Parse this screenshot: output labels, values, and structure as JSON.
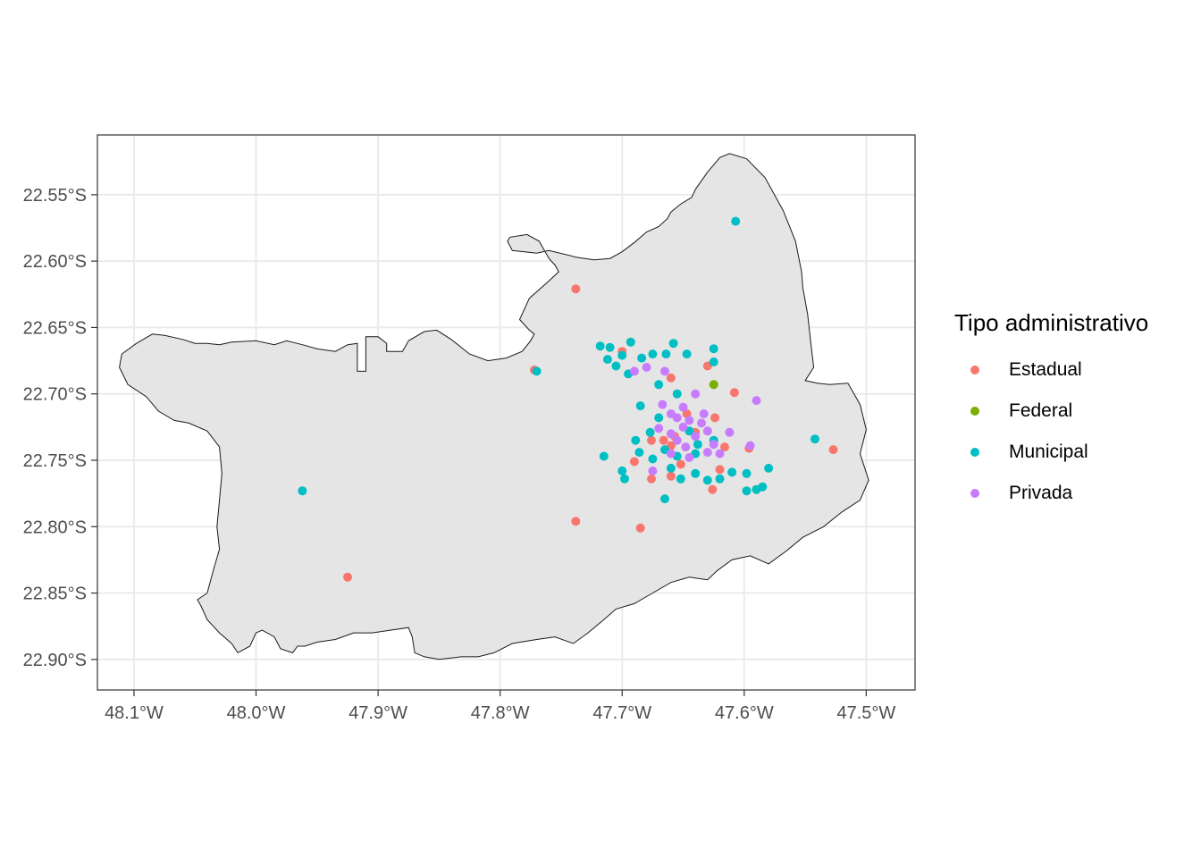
{
  "chart_data": {
    "type": "scatter",
    "title": "",
    "xlabel": "",
    "ylabel": "",
    "xlim": [
      -48.13,
      -47.46
    ],
    "ylim": [
      -22.923,
      -22.505
    ],
    "x_ticks": [
      {
        "value": -48.1,
        "label": "48.1°W"
      },
      {
        "value": -48.0,
        "label": "48.0°W"
      },
      {
        "value": -47.9,
        "label": "47.9°W"
      },
      {
        "value": -47.8,
        "label": "47.8°W"
      },
      {
        "value": -47.7,
        "label": "47.7°W"
      },
      {
        "value": -47.6,
        "label": "47.6°W"
      },
      {
        "value": -47.5,
        "label": "47.5°W"
      }
    ],
    "y_ticks": [
      {
        "value": -22.55,
        "label": "22.55°S"
      },
      {
        "value": -22.6,
        "label": "22.60°S"
      },
      {
        "value": -22.65,
        "label": "22.65°S"
      },
      {
        "value": -22.7,
        "label": "22.70°S"
      },
      {
        "value": -22.75,
        "label": "22.75°S"
      },
      {
        "value": -22.8,
        "label": "22.80°S"
      },
      {
        "value": -22.85,
        "label": "22.85°S"
      },
      {
        "value": -22.9,
        "label": "22.90°S"
      }
    ],
    "grid": true,
    "legend_position": "right",
    "legend": {
      "title": "Tipo administrativo",
      "entries": [
        {
          "name": "Estadual",
          "color": "#F8766D"
        },
        {
          "name": "Federal",
          "color": "#7CAE00"
        },
        {
          "name": "Municipal",
          "color": "#00BFC4"
        },
        {
          "name": "Privada",
          "color": "#C77CFF"
        }
      ]
    },
    "boundary": [
      [
        -48.11,
        -22.67
      ],
      [
        -48.098,
        -22.662
      ],
      [
        -48.085,
        -22.655
      ],
      [
        -48.075,
        -22.656
      ],
      [
        -48.06,
        -22.659
      ],
      [
        -48.05,
        -22.662
      ],
      [
        -48.04,
        -22.662
      ],
      [
        -48.03,
        -22.663
      ],
      [
        -48.02,
        -22.661
      ],
      [
        -48.0,
        -22.66
      ],
      [
        -47.985,
        -22.663
      ],
      [
        -47.975,
        -22.66
      ],
      [
        -47.962,
        -22.663
      ],
      [
        -47.95,
        -22.666
      ],
      [
        -47.935,
        -22.668
      ],
      [
        -47.925,
        -22.663
      ],
      [
        -47.917,
        -22.662
      ],
      [
        -47.917,
        -22.683
      ],
      [
        -47.91,
        -22.683
      ],
      [
        -47.91,
        -22.657
      ],
      [
        -47.9,
        -22.657
      ],
      [
        -47.893,
        -22.662
      ],
      [
        -47.893,
        -22.668
      ],
      [
        -47.88,
        -22.668
      ],
      [
        -47.875,
        -22.66
      ],
      [
        -47.862,
        -22.653
      ],
      [
        -47.852,
        -22.652
      ],
      [
        -47.84,
        -22.659
      ],
      [
        -47.825,
        -22.67
      ],
      [
        -47.81,
        -22.675
      ],
      [
        -47.795,
        -22.673
      ],
      [
        -47.782,
        -22.668
      ],
      [
        -47.775,
        -22.66
      ],
      [
        -47.772,
        -22.655
      ],
      [
        -47.776,
        -22.652
      ],
      [
        -47.784,
        -22.644
      ],
      [
        -47.776,
        -22.628
      ],
      [
        -47.76,
        -22.615
      ],
      [
        -47.752,
        -22.608
      ],
      [
        -47.755,
        -22.603
      ],
      [
        -47.76,
        -22.598
      ],
      [
        -47.768,
        -22.585
      ],
      [
        -47.778,
        -22.58
      ],
      [
        -47.792,
        -22.582
      ],
      [
        -47.794,
        -22.585
      ],
      [
        -47.79,
        -22.592
      ],
      [
        -47.77,
        -22.594
      ],
      [
        -47.76,
        -22.592
      ],
      [
        -47.742,
        -22.596
      ],
      [
        -47.738,
        -22.597
      ],
      [
        -47.723,
        -22.599
      ],
      [
        -47.71,
        -22.598
      ],
      [
        -47.7,
        -22.593
      ],
      [
        -47.69,
        -22.586
      ],
      [
        -47.68,
        -22.578
      ],
      [
        -47.67,
        -22.574
      ],
      [
        -47.663,
        -22.568
      ],
      [
        -47.66,
        -22.563
      ],
      [
        -47.652,
        -22.557
      ],
      [
        -47.643,
        -22.552
      ],
      [
        -47.64,
        -22.546
      ],
      [
        -47.63,
        -22.533
      ],
      [
        -47.62,
        -22.522
      ],
      [
        -47.612,
        -22.519
      ],
      [
        -47.598,
        -22.523
      ],
      [
        -47.583,
        -22.537
      ],
      [
        -47.568,
        -22.562
      ],
      [
        -47.558,
        -22.585
      ],
      [
        -47.553,
        -22.608
      ],
      [
        -47.552,
        -22.62
      ],
      [
        -47.548,
        -22.64
      ],
      [
        -47.545,
        -22.665
      ],
      [
        -47.543,
        -22.68
      ],
      [
        -47.55,
        -22.69
      ],
      [
        -47.54,
        -22.692
      ],
      [
        -47.53,
        -22.693
      ],
      [
        -47.515,
        -22.692
      ],
      [
        -47.505,
        -22.708
      ],
      [
        -47.5,
        -22.727
      ],
      [
        -47.505,
        -22.745
      ],
      [
        -47.498,
        -22.765
      ],
      [
        -47.505,
        -22.78
      ],
      [
        -47.52,
        -22.789
      ],
      [
        -47.535,
        -22.8
      ],
      [
        -47.552,
        -22.808
      ],
      [
        -47.565,
        -22.818
      ],
      [
        -47.58,
        -22.828
      ],
      [
        -47.595,
        -22.822
      ],
      [
        -47.61,
        -22.825
      ],
      [
        -47.622,
        -22.833
      ],
      [
        -47.63,
        -22.84
      ],
      [
        -47.645,
        -22.838
      ],
      [
        -47.66,
        -22.842
      ],
      [
        -47.675,
        -22.85
      ],
      [
        -47.69,
        -22.858
      ],
      [
        -47.705,
        -22.862
      ],
      [
        -47.715,
        -22.87
      ],
      [
        -47.728,
        -22.88
      ],
      [
        -47.74,
        -22.888
      ],
      [
        -47.755,
        -22.883
      ],
      [
        -47.77,
        -22.885
      ],
      [
        -47.79,
        -22.888
      ],
      [
        -47.805,
        -22.895
      ],
      [
        -47.818,
        -22.898
      ],
      [
        -47.832,
        -22.898
      ],
      [
        -47.85,
        -22.9
      ],
      [
        -47.862,
        -22.898
      ],
      [
        -47.87,
        -22.895
      ],
      [
        -47.872,
        -22.883
      ],
      [
        -47.875,
        -22.876
      ],
      [
        -47.89,
        -22.878
      ],
      [
        -47.905,
        -22.88
      ],
      [
        -47.92,
        -22.88
      ],
      [
        -47.935,
        -22.885
      ],
      [
        -47.95,
        -22.887
      ],
      [
        -47.96,
        -22.89
      ],
      [
        -47.966,
        -22.89
      ],
      [
        -47.97,
        -22.895
      ],
      [
        -47.98,
        -22.892
      ],
      [
        -47.985,
        -22.883
      ],
      [
        -47.995,
        -22.878
      ],
      [
        -48.0,
        -22.88
      ],
      [
        -48.005,
        -22.89
      ],
      [
        -48.015,
        -22.895
      ],
      [
        -48.02,
        -22.888
      ],
      [
        -48.03,
        -22.88
      ],
      [
        -48.04,
        -22.87
      ],
      [
        -48.045,
        -22.86
      ],
      [
        -48.048,
        -22.855
      ],
      [
        -48.04,
        -22.85
      ],
      [
        -48.035,
        -22.833
      ],
      [
        -48.03,
        -22.817
      ],
      [
        -48.032,
        -22.8
      ],
      [
        -48.03,
        -22.78
      ],
      [
        -48.028,
        -22.76
      ],
      [
        -48.03,
        -22.74
      ],
      [
        -48.04,
        -22.728
      ],
      [
        -48.055,
        -22.722
      ],
      [
        -48.067,
        -22.72
      ],
      [
        -48.08,
        -22.713
      ],
      [
        -48.09,
        -22.702
      ],
      [
        -48.105,
        -22.693
      ],
      [
        -48.112,
        -22.68
      ]
    ],
    "series": [
      {
        "name": "Estadual",
        "color": "#F8766D",
        "points": [
          [
            -47.738,
            -22.621
          ],
          [
            -47.772,
            -22.682
          ],
          [
            -47.738,
            -22.796
          ],
          [
            -47.925,
            -22.838
          ],
          [
            -47.685,
            -22.801
          ],
          [
            -47.527,
            -22.742
          ],
          [
            -47.608,
            -22.699
          ],
          [
            -47.63,
            -22.679
          ],
          [
            -47.676,
            -22.764
          ],
          [
            -47.69,
            -22.751
          ],
          [
            -47.626,
            -22.772
          ],
          [
            -47.596,
            -22.741
          ],
          [
            -47.59,
            -22.772
          ],
          [
            -47.616,
            -22.74
          ],
          [
            -47.66,
            -22.739
          ],
          [
            -47.652,
            -22.753
          ],
          [
            -47.66,
            -22.688
          ],
          [
            -47.624,
            -22.718
          ],
          [
            -47.657,
            -22.732
          ],
          [
            -47.647,
            -22.715
          ],
          [
            -47.64,
            -22.729
          ],
          [
            -47.666,
            -22.735
          ],
          [
            -47.66,
            -22.762
          ],
          [
            -47.62,
            -22.757
          ],
          [
            -47.7,
            -22.668
          ],
          [
            -47.676,
            -22.735
          ]
        ]
      },
      {
        "name": "Federal",
        "color": "#7CAE00",
        "points": [
          [
            -47.625,
            -22.693
          ]
        ]
      },
      {
        "name": "Municipal",
        "color": "#00BFC4",
        "points": [
          [
            -47.962,
            -22.773
          ],
          [
            -47.77,
            -22.683
          ],
          [
            -47.607,
            -22.57
          ],
          [
            -47.542,
            -22.734
          ],
          [
            -47.715,
            -22.747
          ],
          [
            -47.698,
            -22.764
          ],
          [
            -47.71,
            -22.665
          ],
          [
            -47.7,
            -22.671
          ],
          [
            -47.693,
            -22.661
          ],
          [
            -47.718,
            -22.664
          ],
          [
            -47.705,
            -22.679
          ],
          [
            -47.695,
            -22.685
          ],
          [
            -47.684,
            -22.673
          ],
          [
            -47.675,
            -22.67
          ],
          [
            -47.658,
            -22.662
          ],
          [
            -47.664,
            -22.67
          ],
          [
            -47.647,
            -22.67
          ],
          [
            -47.625,
            -22.666
          ],
          [
            -47.655,
            -22.7
          ],
          [
            -47.67,
            -22.693
          ],
          [
            -47.685,
            -22.709
          ],
          [
            -47.67,
            -22.718
          ],
          [
            -47.665,
            -22.742
          ],
          [
            -47.675,
            -22.749
          ],
          [
            -47.66,
            -22.756
          ],
          [
            -47.652,
            -22.764
          ],
          [
            -47.64,
            -22.76
          ],
          [
            -47.63,
            -22.765
          ],
          [
            -47.62,
            -22.764
          ],
          [
            -47.61,
            -22.759
          ],
          [
            -47.598,
            -22.76
          ],
          [
            -47.59,
            -22.772
          ],
          [
            -47.585,
            -22.77
          ],
          [
            -47.58,
            -22.756
          ],
          [
            -47.598,
            -22.773
          ],
          [
            -47.625,
            -22.735
          ],
          [
            -47.64,
            -22.745
          ],
          [
            -47.655,
            -22.747
          ],
          [
            -47.665,
            -22.779
          ],
          [
            -47.625,
            -22.676
          ],
          [
            -47.686,
            -22.744
          ],
          [
            -47.689,
            -22.735
          ],
          [
            -47.7,
            -22.758
          ],
          [
            -47.712,
            -22.674
          ],
          [
            -47.677,
            -22.729
          ],
          [
            -47.645,
            -22.728
          ],
          [
            -47.638,
            -22.738
          ]
        ]
      },
      {
        "name": "Privada",
        "color": "#C77CFF",
        "points": [
          [
            -47.59,
            -22.705
          ],
          [
            -47.595,
            -22.739
          ],
          [
            -47.66,
            -22.73
          ],
          [
            -47.65,
            -22.725
          ],
          [
            -47.645,
            -22.72
          ],
          [
            -47.655,
            -22.735
          ],
          [
            -47.64,
            -22.732
          ],
          [
            -47.635,
            -22.722
          ],
          [
            -47.63,
            -22.728
          ],
          [
            -47.648,
            -22.74
          ],
          [
            -47.66,
            -22.715
          ],
          [
            -47.67,
            -22.726
          ],
          [
            -47.625,
            -22.738
          ],
          [
            -47.612,
            -22.729
          ],
          [
            -47.65,
            -22.71
          ],
          [
            -47.64,
            -22.7
          ],
          [
            -47.62,
            -22.745
          ],
          [
            -47.66,
            -22.745
          ],
          [
            -47.675,
            -22.758
          ],
          [
            -47.69,
            -22.683
          ],
          [
            -47.68,
            -22.68
          ],
          [
            -47.665,
            -22.683
          ],
          [
            -47.63,
            -22.744
          ],
          [
            -47.645,
            -22.748
          ],
          [
            -47.655,
            -22.718
          ],
          [
            -47.667,
            -22.708
          ],
          [
            -47.633,
            -22.715
          ]
        ]
      }
    ]
  }
}
